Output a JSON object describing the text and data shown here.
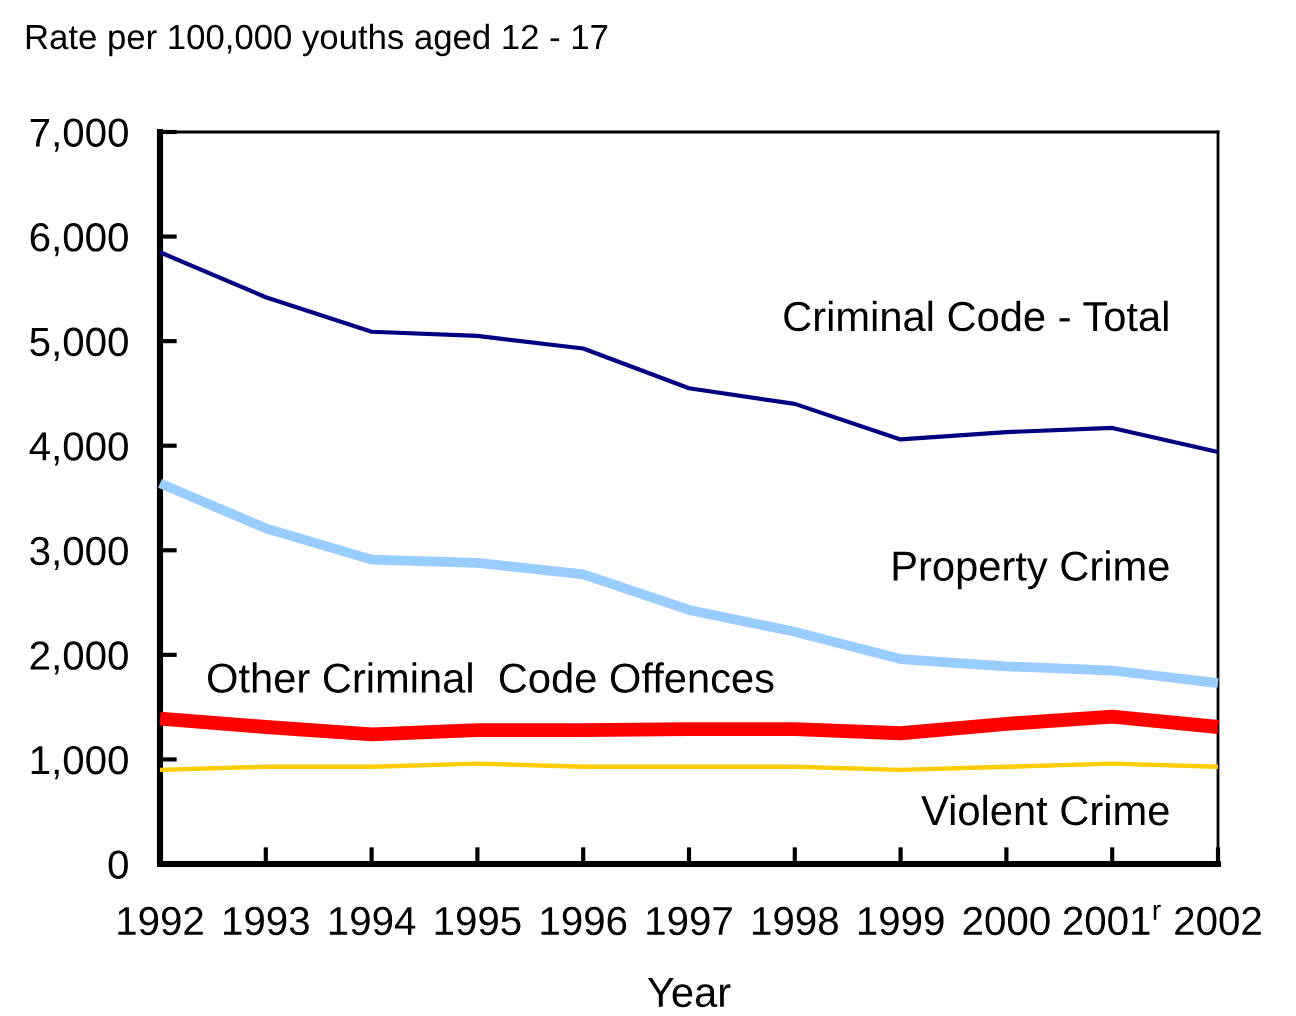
{
  "chart_data": {
    "type": "line",
    "ylabel": "Rate per 100,000 youths aged 12 - 17",
    "xlabel": "Year",
    "categories": [
      "1992",
      "1993",
      "1994",
      "1995",
      "1996",
      "1997",
      "1998",
      "1999",
      "2000",
      "2001$^{r}$",
      "2002"
    ],
    "series": [
      {
        "name": "Criminal Code - Total",
        "color": "#000080",
        "values": [
          5850,
          5420,
          5090,
          5050,
          4930,
          4550,
          4400,
          4060,
          4130,
          4170,
          3940
        ]
      },
      {
        "name": "Property Crime",
        "color": "#99ccff",
        "values": [
          3640,
          3210,
          2910,
          2880,
          2770,
          2430,
          2220,
          1960,
          1890,
          1850,
          1730
        ]
      },
      {
        "name": "Other Criminal  Code Offences",
        "color": "#ff0000",
        "values": [
          1390,
          1310,
          1240,
          1280,
          1280,
          1290,
          1290,
          1250,
          1340,
          1410,
          1310
        ]
      },
      {
        "name": "Violent Crime",
        "color": "#ffcc00",
        "values": [
          900,
          930,
          930,
          960,
          930,
          930,
          930,
          900,
          930,
          960,
          930
        ]
      }
    ],
    "ylim": [
      0,
      7000
    ],
    "yticks": [
      0,
      {
        "value": 1000,
        "label": "1,000"
      },
      {
        "value": 2000,
        "label": "2,000"
      },
      {
        "value": 3000,
        "label": "3,000"
      },
      {
        "value": 4000,
        "label": "4,000"
      },
      {
        "value": 5000,
        "label": "5,000"
      },
      {
        "value": 6000,
        "label": "6,000"
      },
      {
        "value": 7000,
        "label": "7,000"
      }
    ],
    "grid": false,
    "legend": false,
    "marker": "none",
    "line_style": "solid"
  }
}
